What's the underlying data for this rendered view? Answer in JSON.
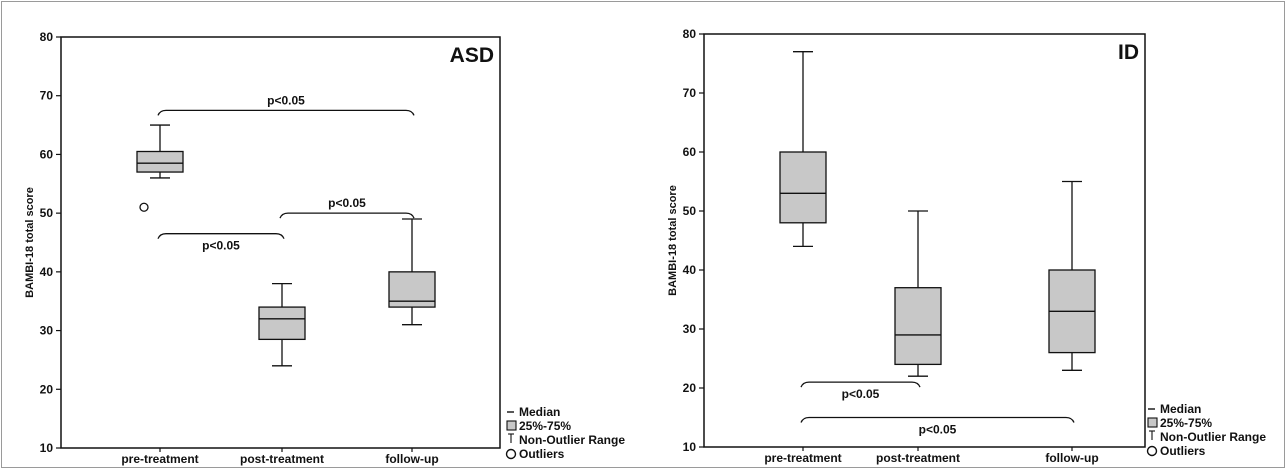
{
  "chart_data": [
    {
      "type": "box",
      "title": "ASD",
      "ylabel": "BAMBI-18 total score",
      "ylim": [
        10,
        80
      ],
      "yticks": [
        10,
        20,
        30,
        40,
        50,
        60,
        70,
        80
      ],
      "categories": [
        "pre-treatment",
        "post-treatment",
        "follow-up"
      ],
      "boxes": [
        {
          "min": 56,
          "q1": 57,
          "median": 58.5,
          "q3": 60.5,
          "max": 65,
          "outliers": [
            51
          ]
        },
        {
          "min": 24,
          "q1": 28.5,
          "median": 32,
          "q3": 34,
          "max": 38,
          "outliers": []
        },
        {
          "min": 31,
          "q1": 34,
          "median": 35,
          "q3": 40,
          "max": 49,
          "outliers": []
        }
      ],
      "annotations": [
        {
          "text": "p<0.05",
          "from": 0,
          "to": 2,
          "y": 67.5
        },
        {
          "text": "p<0.05",
          "from": 1,
          "to": 2,
          "y": 50
        },
        {
          "text": "p<0.05",
          "from": 0,
          "to": 1,
          "y": 46.5
        }
      ]
    },
    {
      "type": "box",
      "title": "ID",
      "ylabel": "BAMBI-18 total score",
      "ylim": [
        10,
        80
      ],
      "yticks": [
        10,
        20,
        30,
        40,
        50,
        60,
        70,
        80
      ],
      "categories": [
        "pre-treatment",
        "post-treatment",
        "follow-up"
      ],
      "boxes": [
        {
          "min": 44,
          "q1": 48,
          "median": 53,
          "q3": 60,
          "max": 77,
          "outliers": []
        },
        {
          "min": 22,
          "q1": 24,
          "median": 29,
          "q3": 37,
          "max": 50,
          "outliers": []
        },
        {
          "min": 23,
          "q1": 26,
          "median": 33,
          "q3": 40,
          "max": 55,
          "outliers": []
        }
      ],
      "annotations": [
        {
          "text": "p<0.05",
          "from": 0,
          "to": 1,
          "y": 21
        },
        {
          "text": "p<0.05",
          "from": 0,
          "to": 2,
          "y": 15
        }
      ]
    }
  ],
  "legend": {
    "median": "Median",
    "box": "25%-75%",
    "range": "Non-Outlier Range",
    "outliers": "Outliers"
  },
  "colors": {
    "box_fill": "#c8c8c8",
    "stroke": "#111111"
  }
}
